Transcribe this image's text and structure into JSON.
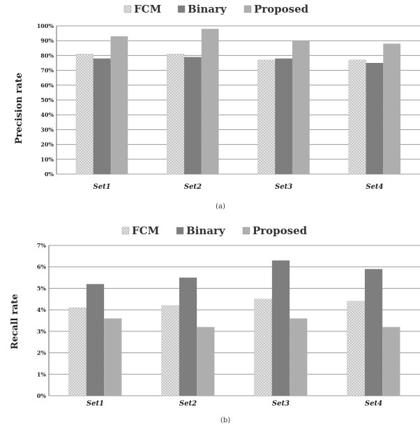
{
  "chart_data": [
    {
      "type": "bar",
      "caption": "(a)",
      "categories": [
        "Set1",
        "Set2",
        "Set3",
        "Set4"
      ],
      "series": [
        {
          "name": "FCM",
          "values": [
            81,
            81,
            77,
            77
          ],
          "color": "#d6d6d6",
          "pattern": "dots"
        },
        {
          "name": "Binary",
          "values": [
            78,
            79,
            78,
            75
          ],
          "color": "#7e7e7e"
        },
        {
          "name": "Proposed",
          "values": [
            93,
            98,
            90,
            88
          ],
          "color": "#aeaeae"
        }
      ],
      "ylabel": "Precision rate",
      "xlabel": "",
      "ylim": [
        0,
        100
      ],
      "yticks": [
        "0%",
        "10%",
        "20%",
        "30%",
        "40%",
        "50%",
        "60%",
        "70%",
        "80%",
        "90%",
        "100%"
      ],
      "legend": "top",
      "grid": true
    },
    {
      "type": "bar",
      "caption": "(b)",
      "categories": [
        "Set1",
        "Set2",
        "Set3",
        "Set4"
      ],
      "series": [
        {
          "name": "FCM",
          "values": [
            4.1,
            4.2,
            4.5,
            4.4
          ],
          "color": "#d6d6d6",
          "pattern": "dots"
        },
        {
          "name": "Binary",
          "values": [
            5.2,
            5.5,
            6.3,
            5.9
          ],
          "color": "#7e7e7e"
        },
        {
          "name": "Proposed",
          "values": [
            3.6,
            3.2,
            3.6,
            3.2
          ],
          "color": "#aeaeae"
        }
      ],
      "ylabel": "Recall rate",
      "xlabel": "",
      "ylim": [
        0,
        7
      ],
      "yticks": [
        "0%",
        "1%",
        "2%",
        "3%",
        "4%",
        "5%",
        "6%",
        "7%"
      ],
      "legend": "top",
      "grid": true
    }
  ]
}
